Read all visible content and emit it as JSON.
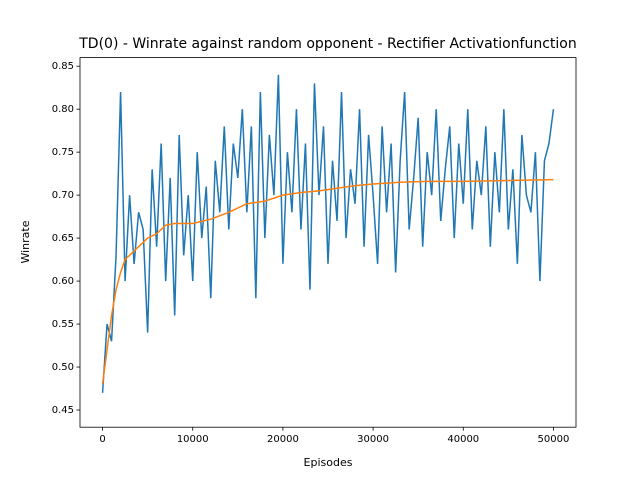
{
  "chart_data": {
    "type": "line",
    "title": "TD(0) - Winrate against random opponent - Rectifier Activationfunction",
    "xlabel": "Episodes",
    "ylabel": "Winrate",
    "xlim": [
      -2500,
      52500
    ],
    "ylim": [
      0.43,
      0.86
    ],
    "xticks": [
      0,
      10000,
      20000,
      30000,
      40000,
      50000
    ],
    "yticks": [
      0.45,
      {
        "value": 0.5,
        "label": "0.50"
      },
      0.55,
      {
        "value": 0.6,
        "label": "0.60"
      },
      0.65,
      {
        "value": 0.7,
        "label": "0.70"
      },
      0.75,
      {
        "value": 0.8,
        "label": "0.80"
      },
      0.85
    ],
    "series": [
      {
        "color": "#1f77b4",
        "x": [
          0,
          500,
          1000,
          1500,
          2000,
          2500,
          3000,
          3500,
          4000,
          4500,
          5000,
          5500,
          6000,
          6500,
          7000,
          7500,
          8000,
          8500,
          9000,
          9500,
          10000,
          10500,
          11000,
          11500,
          12000,
          12500,
          13000,
          13500,
          14000,
          14500,
          15000,
          15500,
          16000,
          16500,
          17000,
          17500,
          18000,
          18500,
          19000,
          19500,
          20000,
          20500,
          21000,
          21500,
          22000,
          22500,
          23000,
          23500,
          24000,
          24500,
          25000,
          25500,
          26000,
          26500,
          27000,
          27500,
          28000,
          28500,
          29000,
          29500,
          30000,
          30500,
          31000,
          31500,
          32000,
          32500,
          33000,
          33500,
          34000,
          34500,
          35000,
          35500,
          36000,
          36500,
          37000,
          37500,
          38000,
          38500,
          39000,
          39500,
          40000,
          40500,
          41000,
          41500,
          42000,
          42500,
          43000,
          43500,
          44000,
          44500,
          45000,
          45500,
          46000,
          46500,
          47000,
          47500,
          48000,
          48500,
          49000,
          49500,
          50000
        ],
        "values": [
          0.47,
          0.55,
          0.53,
          0.63,
          0.82,
          0.6,
          0.7,
          0.62,
          0.68,
          0.66,
          0.54,
          0.73,
          0.64,
          0.76,
          0.6,
          0.72,
          0.56,
          0.77,
          0.63,
          0.7,
          0.6,
          0.75,
          0.65,
          0.71,
          0.58,
          0.74,
          0.68,
          0.78,
          0.66,
          0.76,
          0.72,
          0.8,
          0.68,
          0.78,
          0.58,
          0.82,
          0.65,
          0.77,
          0.7,
          0.84,
          0.62,
          0.75,
          0.68,
          0.8,
          0.66,
          0.76,
          0.59,
          0.83,
          0.7,
          0.78,
          0.62,
          0.74,
          0.67,
          0.82,
          0.65,
          0.73,
          0.69,
          0.8,
          0.64,
          0.77,
          0.7,
          0.62,
          0.78,
          0.68,
          0.76,
          0.61,
          0.74,
          0.82,
          0.66,
          0.72,
          0.79,
          0.64,
          0.75,
          0.7,
          0.8,
          0.67,
          0.73,
          0.78,
          0.65,
          0.76,
          0.69,
          0.8,
          0.66,
          0.74,
          0.7,
          0.78,
          0.64,
          0.75,
          0.68,
          0.8,
          0.66,
          0.73,
          0.62,
          0.77,
          0.7,
          0.68,
          0.75,
          0.6,
          0.74,
          0.76,
          0.8
        ]
      },
      {
        "color": "#ff7f0e",
        "x": [
          0,
          500,
          1000,
          1500,
          2000,
          2500,
          3000,
          4000,
          5000,
          6000,
          7000,
          8000,
          10000,
          12000,
          14000,
          16000,
          18000,
          20000,
          22000,
          24000,
          26000,
          28000,
          30000,
          33000,
          36000,
          40000,
          45000,
          50000
        ],
        "values": [
          0.48,
          0.52,
          0.56,
          0.59,
          0.61,
          0.625,
          0.63,
          0.64,
          0.65,
          0.655,
          0.665,
          0.667,
          0.667,
          0.672,
          0.68,
          0.69,
          0.693,
          0.7,
          0.703,
          0.705,
          0.708,
          0.711,
          0.713,
          0.715,
          0.716,
          0.716,
          0.717,
          0.718
        ]
      }
    ]
  }
}
